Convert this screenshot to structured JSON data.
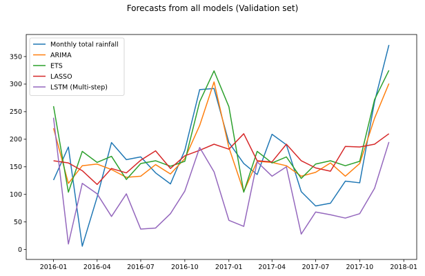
{
  "figure": {
    "suptitle": "Forecasts from all models (Validation set)"
  },
  "chart_data": {
    "type": "line",
    "title": "Forecasts from all models (Validation set)",
    "xlabel": "",
    "ylabel": "",
    "x": [
      "2016-01",
      "2016-02",
      "2016-03",
      "2016-04",
      "2016-05",
      "2016-06",
      "2016-07",
      "2016-08",
      "2016-09",
      "2016-10",
      "2016-11",
      "2016-12",
      "2017-01",
      "2017-02",
      "2017-03",
      "2017-04",
      "2017-05",
      "2017-06",
      "2017-07",
      "2017-08",
      "2017-09",
      "2017-10",
      "2017-11",
      "2017-12"
    ],
    "xlim": [
      "2015-11-05",
      "2018-01-28"
    ],
    "ylim": [
      -18,
      390
    ],
    "xticks": [
      "2016-01",
      "2016-04",
      "2016-07",
      "2016-10",
      "2017-01",
      "2017-04",
      "2017-07",
      "2017-10",
      "2018-01"
    ],
    "yticks": [
      0,
      50,
      100,
      150,
      200,
      250,
      300,
      350
    ],
    "grid": false,
    "legend_position": "top-left",
    "series": [
      {
        "name": "Monthly total rainfall",
        "color": "#1f77b4",
        "values": [
          126,
          186,
          6,
          95,
          194,
          163,
          168,
          139,
          119,
          180,
          290,
          292,
          194,
          156,
          136,
          209,
          190,
          105,
          79,
          84,
          124,
          121,
          268,
          371
        ]
      },
      {
        "name": "ARIMA",
        "color": "#ff7f0e",
        "values": [
          220,
          120,
          152,
          155,
          145,
          131,
          133,
          154,
          137,
          165,
          225,
          304,
          185,
          105,
          160,
          158,
          152,
          133,
          140,
          157,
          133,
          156,
          238,
          301
        ]
      },
      {
        "name": "ETS",
        "color": "#2ca02c",
        "values": [
          260,
          104,
          178,
          158,
          169,
          127,
          156,
          161,
          151,
          160,
          268,
          324,
          259,
          104,
          178,
          157,
          168,
          129,
          155,
          161,
          152,
          160,
          272,
          325
        ]
      },
      {
        "name": "LASSO",
        "color": "#d62728",
        "values": [
          161,
          157,
          143,
          118,
          147,
          139,
          162,
          179,
          147,
          170,
          180,
          191,
          182,
          210,
          161,
          159,
          191,
          161,
          148,
          142,
          187,
          186,
          191,
          210
        ]
      },
      {
        "name": "LSTM (Multi-step)",
        "color": "#9467bd",
        "values": [
          239,
          10,
          120,
          101,
          60,
          101,
          37,
          39,
          65,
          106,
          185,
          141,
          53,
          42,
          159,
          133,
          150,
          28,
          68,
          63,
          57,
          65,
          111,
          195
        ]
      }
    ]
  }
}
